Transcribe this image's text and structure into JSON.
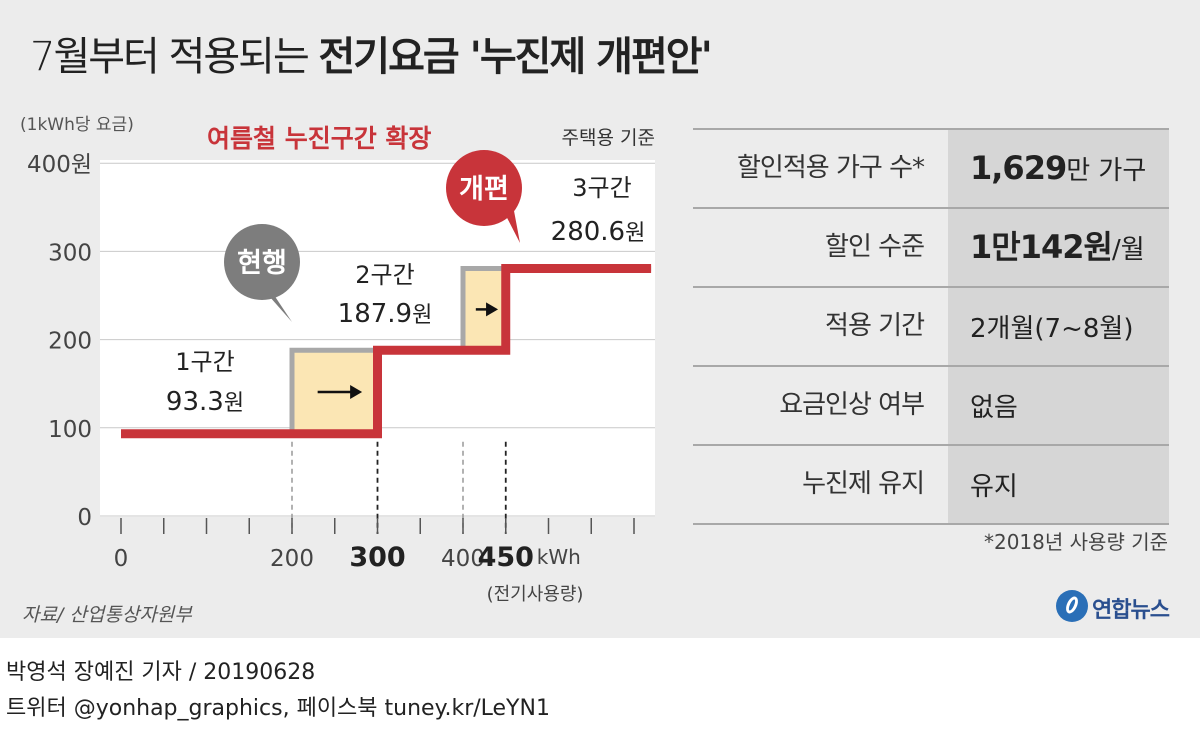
{
  "title": {
    "light": "7월부터 적용되는",
    "bold": "전기요금 '누진제 개편안'"
  },
  "chart_data": {
    "type": "line",
    "subtitle": "여름철 누진구간 확장",
    "unit_label": "(1kWh당 요금)",
    "basis_label": "주택용 기준",
    "xlabel": "kWh",
    "xlabel_note": "(전기사용량)",
    "ylim": [
      0,
      400
    ],
    "xlim": [
      0,
      620
    ],
    "y_ticks": [
      "0",
      "100",
      "200",
      "300",
      "400원"
    ],
    "y_tick_values": [
      0,
      100,
      200,
      300,
      400
    ],
    "x_tick_labels": [
      {
        "value": 0,
        "label": "0",
        "bold": false
      },
      {
        "value": 200,
        "label": "200",
        "bold": false
      },
      {
        "value": 300,
        "label": "300",
        "bold": true
      },
      {
        "value": 400,
        "label": "400",
        "bold": false
      },
      {
        "value": 450,
        "label": "450",
        "bold": true
      }
    ],
    "x_minor_ticks": [
      0,
      50,
      100,
      150,
      200,
      250,
      300,
      350,
      400,
      450,
      500,
      550,
      600
    ],
    "series": [
      {
        "name": "개편",
        "color": "#c8343a",
        "steps": [
          {
            "from": 0,
            "to": 300,
            "value": 93.3
          },
          {
            "from": 300,
            "to": 450,
            "value": 187.9
          },
          {
            "from": 450,
            "to": 620,
            "value": 280.6
          }
        ]
      },
      {
        "name": "현행",
        "color": "#a8a8a8",
        "steps": [
          {
            "from": 0,
            "to": 200,
            "value": 93.3
          },
          {
            "from": 200,
            "to": 400,
            "value": 187.9
          },
          {
            "from": 400,
            "to": 620,
            "value": 280.6
          }
        ]
      }
    ],
    "tier_labels": [
      {
        "name": "1구간",
        "price": "93.3",
        "unit": "원"
      },
      {
        "name": "2구간",
        "price": "187.9",
        "unit": "원"
      },
      {
        "name": "3구간",
        "price": "280.6",
        "unit": "원"
      }
    ],
    "bubbles": [
      {
        "text": "현행",
        "color": "#7d7d7d"
      },
      {
        "text": "개편",
        "color": "#c8343a"
      }
    ]
  },
  "table": {
    "rows": [
      {
        "label": "할인적용 가구 수*",
        "value_big": "1,629",
        "value_small": "만 가구"
      },
      {
        "label": "할인 수준",
        "value_big": "1만142원",
        "value_small": "/월"
      },
      {
        "label": "적용 기간",
        "value_big": "",
        "value_small": "2개월(7~8월)"
      },
      {
        "label": "요금인상 여부",
        "value_big": "",
        "value_small": "없음"
      },
      {
        "label": "누진제 유지",
        "value_big": "",
        "value_small": "유지"
      }
    ],
    "footnote": "*2018년 사용량 기준"
  },
  "source": "자료/ 산업통상자원부",
  "logo": "연합뉴스",
  "credit": {
    "line1": "박영석 장예진 기자 /  20190628",
    "line2": "트위터 @yonhap_graphics, 페이스북 tuney.kr/LeYN1"
  },
  "colors": {
    "red": "#c8343a",
    "gray_step": "#a8a8a8",
    "highlight_box": "#fbe6b4",
    "panel_bg": "#ececec",
    "plot_bg": "#ffffff"
  }
}
